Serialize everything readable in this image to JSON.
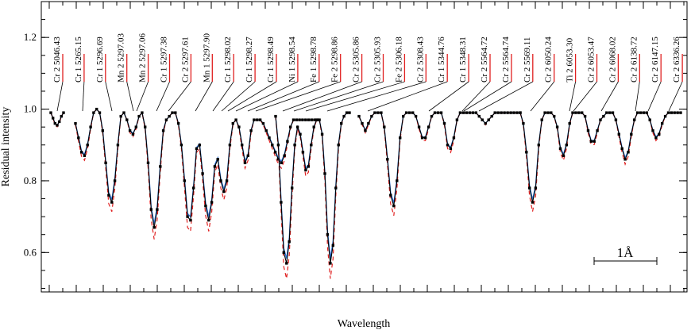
{
  "chart_data": {
    "type": "line",
    "xlabel": "Wavelength",
    "ylabel": "Residual intensity",
    "ylim": [
      0.49,
      1.3
    ],
    "yticks": [
      0.6,
      0.8,
      1.0,
      1.2
    ],
    "ytick_labels": [
      "0.6",
      "0.8",
      "1.0",
      "1.2"
    ],
    "grid": false,
    "scale_bar_label": "1Å",
    "colors": {
      "observed": "#000000",
      "model_blue": "#2a6fd6",
      "model_red": "#e02020",
      "lines": "#000000"
    },
    "windows": [
      {
        "x": [
          0,
          1,
          2,
          3,
          4,
          5,
          6
        ],
        "obs": [
          0.99,
          0.975,
          0.96,
          0.955,
          0.965,
          0.98,
          0.99
        ]
      },
      {
        "x": [
          0,
          1,
          2,
          3,
          4,
          5,
          6,
          7,
          8,
          9,
          10,
          11,
          12,
          13,
          14,
          15,
          16,
          17,
          18,
          19,
          20,
          21,
          22,
          23,
          24,
          25,
          26,
          27,
          28,
          29,
          30,
          31,
          32,
          33,
          34,
          35,
          36,
          37,
          38,
          39,
          40,
          41,
          42,
          43,
          44,
          45,
          46,
          47,
          48,
          49,
          50,
          51,
          52,
          53,
          54,
          55,
          56,
          57,
          58,
          59,
          60,
          61,
          62,
          63,
          64,
          65,
          66,
          67,
          68,
          69,
          70,
          71,
          72,
          73,
          74,
          75,
          76,
          77,
          78,
          79,
          80
        ],
        "obs": [
          0.96,
          0.92,
          0.88,
          0.87,
          0.9,
          0.95,
          0.99,
          1.0,
          0.99,
          0.94,
          0.85,
          0.76,
          0.74,
          0.8,
          0.9,
          0.98,
          0.99,
          0.97,
          0.94,
          0.93,
          0.95,
          0.98,
          0.99,
          0.95,
          0.85,
          0.72,
          0.67,
          0.72,
          0.84,
          0.94,
          0.97,
          0.98,
          0.99,
          0.99,
          0.96,
          0.9,
          0.8,
          0.7,
          0.69,
          0.78,
          0.89,
          0.9,
          0.82,
          0.73,
          0.69,
          0.74,
          0.84,
          0.86,
          0.8,
          0.77,
          0.8,
          0.9,
          0.96,
          0.97,
          0.95,
          0.9,
          0.85,
          0.87,
          0.94,
          0.97,
          0.97,
          0.97,
          0.96,
          0.94,
          0.92,
          0.9,
          0.88,
          0.86,
          0.85,
          0.87,
          0.91,
          0.95,
          0.97,
          0.97,
          0.97,
          0.97,
          0.97,
          0.97,
          0.97,
          0.97,
          0.97
        ]
      },
      {
        "x": [
          0,
          1,
          2,
          3,
          4,
          5,
          6,
          7,
          8,
          9,
          10,
          11,
          12,
          13,
          14,
          15,
          16,
          17,
          18,
          19,
          20,
          21,
          22,
          23,
          24,
          25,
          26,
          27
        ],
        "obs": [
          0.98,
          0.9,
          0.74,
          0.6,
          0.57,
          0.63,
          0.78,
          0.9,
          0.95,
          0.93,
          0.88,
          0.83,
          0.84,
          0.9,
          0.95,
          0.97,
          0.97,
          0.93,
          0.82,
          0.65,
          0.57,
          0.62,
          0.78,
          0.9,
          0.96,
          0.98,
          0.99,
          0.99
        ]
      },
      {
        "x": [
          0,
          1,
          2,
          3,
          4,
          5,
          6,
          7,
          8,
          9,
          10,
          11,
          12,
          13,
          14,
          15,
          16,
          17,
          18,
          19,
          20,
          21,
          22,
          23,
          24,
          25,
          26,
          27,
          28,
          29,
          30,
          31,
          32,
          33,
          34,
          35,
          36,
          37,
          38,
          39,
          40,
          41,
          42,
          43,
          44,
          45,
          46,
          47,
          48,
          49,
          50,
          51
        ],
        "obs": [
          0.98,
          0.96,
          0.94,
          0.96,
          0.98,
          0.99,
          0.99,
          0.99,
          0.95,
          0.86,
          0.76,
          0.73,
          0.8,
          0.92,
          0.98,
          0.99,
          0.99,
          0.99,
          0.98,
          0.95,
          0.92,
          0.92,
          0.95,
          0.98,
          0.99,
          0.99,
          0.99,
          0.96,
          0.9,
          0.89,
          0.92,
          0.97,
          0.99,
          0.99,
          0.99,
          0.99,
          0.99,
          0.99,
          0.98,
          0.97,
          0.96,
          0.97,
          0.98,
          0.99,
          0.99,
          0.99,
          0.99,
          0.99,
          0.99,
          0.99,
          0.99,
          0.99
        ]
      },
      {
        "x": [
          0,
          1,
          2,
          3,
          4,
          5,
          6,
          7,
          8,
          9,
          10,
          11,
          12,
          13,
          14,
          15,
          16,
          17,
          18,
          19,
          20,
          21,
          22,
          23,
          24,
          25,
          26,
          27,
          28,
          29,
          30,
          31,
          32,
          33,
          34,
          35,
          36,
          37,
          38,
          39,
          40,
          41,
          42,
          43,
          44,
          45,
          46,
          47,
          48,
          49,
          50,
          51,
          52
        ],
        "obs": [
          0.99,
          0.96,
          0.88,
          0.78,
          0.74,
          0.78,
          0.9,
          0.97,
          0.99,
          0.99,
          0.99,
          0.98,
          0.95,
          0.89,
          0.87,
          0.9,
          0.96,
          0.99,
          0.99,
          0.99,
          0.99,
          0.98,
          0.94,
          0.91,
          0.91,
          0.94,
          0.97,
          0.98,
          0.99,
          0.99,
          0.99,
          0.97,
          0.93,
          0.89,
          0.86,
          0.88,
          0.93,
          0.97,
          0.99,
          0.99,
          0.99,
          0.99,
          0.97,
          0.94,
          0.92,
          0.93,
          0.96,
          0.98,
          0.99,
          0.99,
          0.99,
          0.99,
          0.99
        ]
      }
    ],
    "line_labels": [
      "Cr 2 5046.43",
      "Cr 1 5265.15",
      "Cr 1 5296.69",
      "Mn 2 5297.03",
      "Mn 2 5297.06",
      "Cr 1 5297.38",
      "Cr 2 5297.61",
      "Mn 1 5297.90",
      "Cr 1 5298.02",
      "Cr 1 5298.27",
      "Cr 1 5298.49",
      "Ni 1 5298.54",
      "Fe 1 5298.78",
      "Fe 2 5298.86",
      "Cr 2 5305.86",
      "Cr 2 5305.93",
      "Fe 2 5306.18",
      "Cr 2 5308.43",
      "Cr 1 5344.76",
      "Cr 1 5348.31",
      "Cr 2 5564.72",
      "Cr 2 5564.74",
      "Cr 2 5569.11",
      "Cr 2 6050.24",
      "Ti 2 6053.30",
      "Cr 2 6053.47",
      "Cr 2 6068.02",
      "Cr 2 6138.72",
      "Cr 2 6147.15",
      "Cr 2 6336.26"
    ]
  }
}
